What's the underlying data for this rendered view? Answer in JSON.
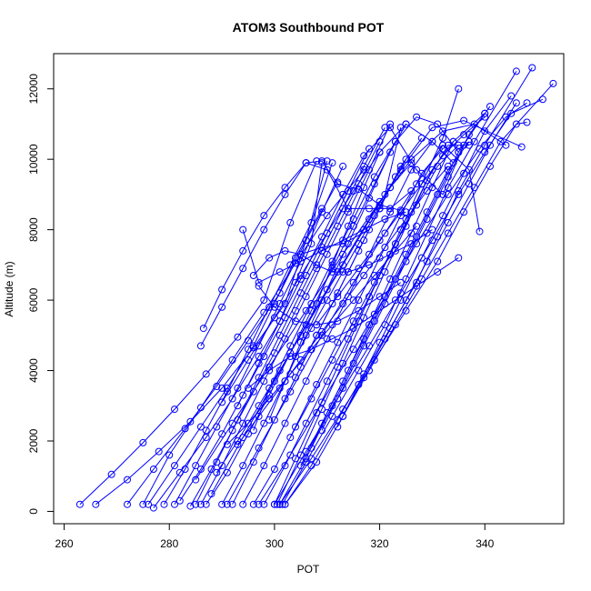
{
  "chart_data": {
    "type": "line",
    "title": "ATOM3 Southbound POT",
    "xlabel": "POT",
    "ylabel": "Altitude (m)",
    "xlim": [
      258,
      355
    ],
    "ylim": [
      -350,
      13000
    ],
    "xticks": [
      260,
      280,
      300,
      320,
      340
    ],
    "yticks": [
      0,
      2000,
      4000,
      6000,
      8000,
      10000,
      12000
    ],
    "marker": "open-circle",
    "grid": false,
    "color": "#0000ff",
    "series": [
      {
        "x": [
          263,
          269,
          275,
          281,
          287,
          293,
          298,
          303,
          308
        ],
        "y": [
          200,
          1050,
          1950,
          2900,
          3900,
          4950,
          6000,
          8200,
          9950
        ]
      },
      {
        "x": [
          266,
          272,
          278,
          284,
          290,
          296,
          302,
          306,
          310
        ],
        "y": [
          200,
          900,
          1700,
          2550,
          3500,
          4650,
          5900,
          7700,
          9950
        ]
      },
      {
        "x": [
          272,
          277,
          283,
          289,
          295,
          301,
          306,
          312
        ],
        "y": [
          200,
          1200,
          2350,
          3550,
          4850,
          6200,
          7700,
          9350
        ]
      },
      {
        "x": [
          275,
          280,
          286,
          292,
          298,
          304,
          310,
          317
        ],
        "y": [
          200,
          1600,
          2950,
          4300,
          5650,
          7050,
          8400,
          9700
        ]
      },
      {
        "x": [
          276,
          281,
          286,
          291,
          296,
          300,
          304,
          309
        ],
        "y": [
          200,
          1300,
          2400,
          3500,
          4700,
          5900,
          7200,
          8600
        ]
      },
      {
        "x": [
          277,
          282,
          287,
          292,
          297,
          301,
          304,
          307,
          309
        ],
        "y": [
          100,
          1100,
          2100,
          3200,
          4400,
          5400,
          6500,
          7600,
          9900
        ]
      },
      {
        "x": [
          279,
          283,
          287,
          291,
          295,
          299,
          303,
          307,
          311
        ],
        "y": [
          200,
          1200,
          2300,
          3400,
          4600,
          5800,
          7000,
          8200,
          9900
        ]
      },
      {
        "x": [
          281,
          285,
          289,
          293,
          297,
          301,
          305,
          309,
          313
        ],
        "y": [
          200,
          1300,
          2400,
          3500,
          4700,
          5900,
          7100,
          8500,
          9800
        ]
      },
      {
        "x": [
          282,
          286,
          290,
          294,
          298,
          302,
          306,
          310,
          314,
          318
        ],
        "y": [
          300,
          1200,
          2200,
          3300,
          4400,
          5500,
          6700,
          7900,
          9100,
          10300
        ]
      },
      {
        "x": [
          284,
          288,
          292,
          296,
          300,
          304,
          308,
          312,
          316,
          320
        ],
        "y": [
          150,
          1200,
          2300,
          3400,
          4500,
          5700,
          6900,
          8100,
          9300,
          10500
        ]
      },
      {
        "x": [
          285,
          289,
          293,
          297,
          301,
          305,
          309,
          313,
          317,
          321
        ],
        "y": [
          200,
          1400,
          2600,
          3800,
          5000,
          6200,
          7400,
          8600,
          9800,
          10900
        ]
      },
      {
        "x": [
          286,
          290,
          294,
          298,
          302,
          306,
          310,
          314,
          318,
          322
        ],
        "y": [
          200,
          1300,
          2500,
          3700,
          4900,
          6100,
          7300,
          8500,
          9700,
          11000
        ]
      },
      {
        "x": [
          287,
          291,
          295,
          299,
          303,
          307,
          311,
          315,
          319,
          323
        ],
        "y": [
          200,
          1100,
          2200,
          3300,
          4500,
          5700,
          6900,
          8100,
          9300,
          10500
        ]
      },
      {
        "x": [
          290,
          294,
          298,
          302,
          306,
          310,
          314,
          318,
          322,
          325
        ],
        "y": [
          200,
          1300,
          2500,
          3700,
          5000,
          6300,
          7600,
          8900,
          10200,
          11000
        ]
      },
      {
        "x": [
          292,
          296,
          300,
          304,
          308,
          312,
          316,
          320,
          324,
          328
        ],
        "y": [
          200,
          1400,
          2600,
          3800,
          5000,
          6200,
          7400,
          8600,
          9800,
          10600
        ]
      },
      {
        "x": [
          294,
          298,
          302,
          306,
          310,
          314,
          318,
          322,
          326,
          330
        ],
        "y": [
          200,
          1300,
          2500,
          3700,
          4900,
          6100,
          7300,
          8500,
          9700,
          10500
        ]
      },
      {
        "x": [
          296,
          300,
          304,
          308,
          312,
          316,
          320,
          324,
          328,
          332
        ],
        "y": [
          200,
          1200,
          2400,
          3600,
          4800,
          6000,
          7200,
          8400,
          9600,
          10300
        ]
      },
      {
        "x": [
          298,
          302,
          306,
          310,
          314,
          318,
          322,
          326,
          330,
          334
        ],
        "y": [
          200,
          1300,
          2500,
          3700,
          4900,
          6100,
          7300,
          8500,
          9700,
          10500
        ]
      },
      {
        "x": [
          300,
          304,
          308,
          312,
          316,
          320,
          324,
          328,
          332,
          335
        ],
        "y": [
          200,
          1500,
          2800,
          4100,
          5400,
          6700,
          8000,
          9300,
          10600,
          12000
        ]
      },
      {
        "x": [
          300.5,
          305,
          309,
          313,
          317,
          321,
          325,
          329,
          333,
          337
        ],
        "y": [
          200,
          1600,
          2900,
          4200,
          5500,
          6800,
          8100,
          9400,
          10400,
          10400
        ]
      },
      {
        "x": [
          301,
          306,
          310,
          314,
          318,
          322,
          326,
          330,
          334,
          340
        ],
        "y": [
          200,
          1500,
          2800,
          4000,
          5300,
          6600,
          7900,
          9200,
          10500,
          11300
        ]
      },
      {
        "x": [
          301.5,
          306,
          311,
          316,
          321,
          325,
          329,
          333,
          338,
          346
        ],
        "y": [
          200,
          1400,
          2700,
          4000,
          5300,
          6600,
          7900,
          9200,
          10500,
          12500
        ]
      },
      {
        "x": [
          302,
          307,
          312,
          317,
          322,
          327,
          331,
          335,
          340,
          349
        ],
        "y": [
          200,
          1300,
          2600,
          3900,
          5200,
          6500,
          7800,
          9100,
          10400,
          12600
        ]
      },
      {
        "x": [
          302,
          308,
          313,
          318,
          323,
          328,
          333,
          338,
          343,
          353
        ],
        "y": [
          200,
          1400,
          2700,
          4000,
          5300,
          6600,
          7900,
          9200,
          10500,
          12150
        ]
      },
      {
        "x": [
          301,
          307,
          313,
          319,
          325,
          331,
          336,
          341,
          346,
          348
        ],
        "y": [
          200,
          1500,
          2900,
          4300,
          5700,
          7100,
          8500,
          9800,
          11000,
          11050
        ]
      },
      {
        "x": [
          300,
          306,
          312,
          318,
          324,
          330,
          335,
          340,
          345,
          351
        ],
        "y": [
          200,
          1700,
          3200,
          4700,
          6200,
          7700,
          9000,
          10200,
          11300,
          11700
        ]
      },
      {
        "x": [
          297,
          303,
          309,
          315,
          321,
          327,
          333,
          339,
          344,
          348
        ],
        "y": [
          200,
          1600,
          3100,
          4600,
          6100,
          7600,
          9000,
          10300,
          11200,
          11600
        ]
      },
      {
        "x": [
          291,
          297,
          303,
          309,
          315,
          321,
          327,
          332,
          337,
          339
        ],
        "y": [
          200,
          1800,
          3400,
          5000,
          6500,
          7900,
          9300,
          10400,
          9700,
          7950
        ]
      },
      {
        "x": [
          288,
          294,
          300,
          306,
          312,
          318,
          324,
          330,
          336,
          347
        ],
        "y": [
          500,
          2100,
          3700,
          5300,
          6800,
          8300,
          9700,
          10900,
          11100,
          10350
        ]
      },
      {
        "x": [
          285,
          292,
          299,
          306,
          313,
          320,
          326,
          332,
          338,
          344
        ],
        "y": [
          900,
          2500,
          4100,
          5700,
          7300,
          8800,
          10000,
          10800,
          11000,
          10400
        ]
      },
      {
        "x": [
          296,
          299,
          303,
          307,
          311,
          315,
          319,
          323,
          327,
          331,
          335
        ],
        "y": [
          2300,
          3500,
          4700,
          5900,
          7100,
          8300,
          9500,
          10500,
          11200,
          11000,
          10200
        ]
      },
      {
        "x": [
          293,
          297,
          301,
          305,
          309,
          313,
          317,
          322,
          327,
          332,
          336
        ],
        "y": [
          3000,
          4200,
          5400,
          6600,
          7800,
          9000,
          10100,
          10900,
          9700,
          9000,
          10400
        ]
      },
      {
        "x": [
          286,
          290,
          294,
          298,
          302,
          306,
          310,
          314,
          318,
          322,
          326
        ],
        "y": [
          4700,
          5800,
          6900,
          8000,
          9000,
          9900,
          9700,
          8600,
          8600,
          8600,
          9100
        ]
      },
      {
        "x": [
          286.5,
          290,
          294,
          298,
          302,
          306,
          309,
          312,
          316,
          320,
          324
        ],
        "y": [
          5200,
          6300,
          7400,
          8400,
          9200,
          9900,
          9950,
          9300,
          9150,
          8700,
          8550
        ]
      },
      {
        "x": [
          290,
          295,
          300,
          305,
          310,
          315,
          320,
          325,
          330,
          334
        ],
        "y": [
          3100,
          4300,
          5500,
          6700,
          7900,
          9100,
          10200,
          11000,
          10500,
          9900
        ]
      },
      {
        "x": [
          296,
          299,
          302,
          305,
          309,
          313,
          318,
          322,
          326
        ],
        "y": [
          6700,
          7200,
          7400,
          7300,
          7500,
          7600,
          8000,
          9200,
          9900
        ]
      },
      {
        "x": [
          294,
          297,
          301,
          305,
          309,
          313,
          317,
          321,
          325
        ],
        "y": [
          8000,
          6500,
          6800,
          7100,
          7400,
          7700,
          8000,
          8300,
          8500
        ]
      },
      {
        "x": [
          297,
          300,
          304,
          308,
          312,
          316,
          320,
          324
        ],
        "y": [
          6400,
          5800,
          5400,
          5300,
          5400,
          5700,
          6100,
          6500
        ]
      },
      {
        "x": [
          305,
          308,
          311,
          314,
          318,
          322,
          326,
          330
        ],
        "y": [
          7300,
          7000,
          6800,
          6800,
          7000,
          7300,
          7600,
          8000
        ]
      },
      {
        "x": [
          295,
          299,
          303,
          307,
          311,
          315,
          319,
          323,
          327,
          331,
          335
        ],
        "y": [
          3500,
          4000,
          4400,
          4600,
          4900,
          5200,
          5600,
          6000,
          6400,
          6800,
          7200
        ]
      },
      {
        "x": [
          291,
          295,
          299,
          303,
          307,
          311,
          315,
          319,
          323,
          327
        ],
        "y": [
          1900,
          2500,
          3200,
          3900,
          4600,
          5300,
          6000,
          6700,
          7400,
          8100
        ]
      },
      {
        "x": [
          293,
          297,
          301,
          305,
          309,
          313,
          317,
          321,
          325,
          329,
          333
        ],
        "y": [
          1900,
          2700,
          3500,
          4300,
          5100,
          5900,
          6700,
          7500,
          8300,
          9100,
          9800
        ]
      },
      {
        "x": [
          303,
          307,
          311,
          315,
          319,
          323,
          327,
          331,
          335
        ],
        "y": [
          2100,
          3200,
          4300,
          5400,
          6500,
          7600,
          8700,
          9800,
          10400
        ]
      },
      {
        "x": [
          305,
          309,
          313,
          317,
          321,
          325,
          329,
          333,
          337
        ],
        "y": [
          1300,
          2500,
          3700,
          4900,
          6100,
          7300,
          8500,
          9700,
          10500
        ]
      },
      {
        "x": [
          307,
          311,
          315,
          319,
          323,
          327,
          331,
          335,
          340
        ],
        "y": [
          1800,
          3000,
          4200,
          5400,
          6600,
          7800,
          9000,
          10200,
          11300
        ]
      },
      {
        "x": [
          309,
          313,
          317,
          321,
          325,
          329,
          333,
          337,
          341
        ],
        "y": [
          2300,
          3500,
          4700,
          5900,
          7100,
          8300,
          9500,
          10700,
          11500
        ]
      },
      {
        "x": [
          312,
          316,
          320,
          324,
          328,
          332,
          336,
          340,
          345
        ],
        "y": [
          2400,
          3600,
          4800,
          6000,
          7200,
          8400,
          9600,
          10800,
          11800
        ]
      },
      {
        "x": [
          313,
          317,
          321,
          325,
          329,
          333,
          337,
          341,
          346
        ],
        "y": [
          2700,
          3800,
          4900,
          6000,
          7100,
          8200,
          9300,
          10400,
          11600
        ]
      },
      {
        "x": [
          308,
          312,
          316,
          320,
          324,
          328,
          332,
          336,
          340
        ],
        "y": [
          5300,
          6100,
          6900,
          7700,
          8500,
          9300,
          10100,
          10700,
          11200
        ]
      },
      {
        "x": [
          304,
          307,
          310,
          313,
          316,
          319,
          322,
          325
        ],
        "y": [
          4400,
          5200,
          6000,
          6800,
          7600,
          8400,
          9200,
          10000
        ]
      },
      {
        "x": [
          302,
          305,
          308,
          311,
          314,
          317,
          320,
          323
        ],
        "y": [
          3200,
          4100,
          5000,
          5900,
          6800,
          7700,
          8600,
          9500
        ]
      },
      {
        "x": [
          299,
          302,
          305,
          308,
          311,
          314,
          317,
          320
        ],
        "y": [
          2600,
          3700,
          4800,
          5900,
          7000,
          8100,
          9200,
          10200
        ]
      },
      {
        "x": [
          289,
          293,
          297,
          301,
          305,
          309,
          313,
          317,
          321,
          324
        ],
        "y": [
          1100,
          2000,
          3000,
          4000,
          5000,
          6000,
          7000,
          8000,
          9000,
          10900
        ]
      }
    ]
  }
}
